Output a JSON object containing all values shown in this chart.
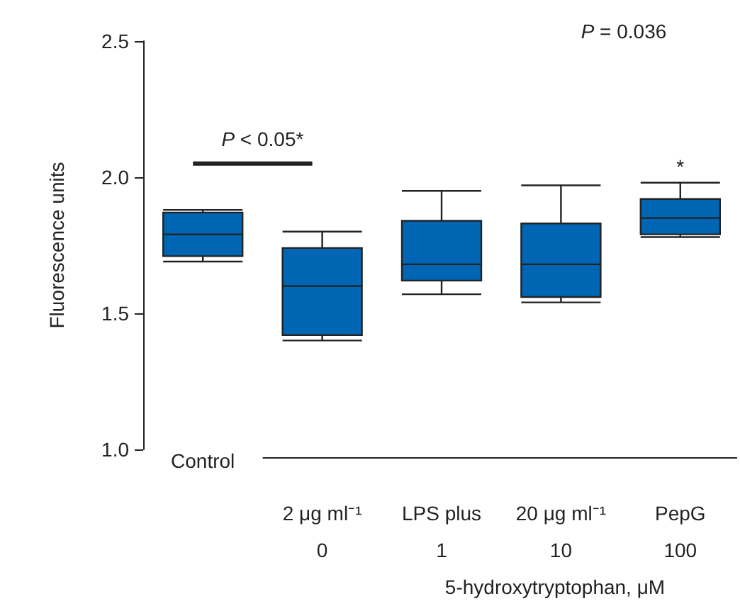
{
  "chart_data": {
    "type": "box",
    "ylabel": "Fluorescence units",
    "xlabel": "5-hydroxytryptophan, μM",
    "categories": [
      "Control",
      "0",
      "1",
      "10",
      "100"
    ],
    "color": "#0066b3",
    "ylim": [
      1.0,
      2.5
    ],
    "yticks": [
      {
        "value": 1.0,
        "label": "1.0"
      },
      {
        "value": 1.5,
        "label": "1.5"
      },
      {
        "value": 2.0,
        "label": "2.0"
      },
      {
        "value": 2.5,
        "label": "2.5"
      }
    ],
    "grid": false,
    "boxes": [
      {
        "low": 1.69,
        "q1": 1.71,
        "median": 1.79,
        "q3": 1.87,
        "high": 1.88
      },
      {
        "low": 1.4,
        "q1": 1.42,
        "median": 1.6,
        "q3": 1.74,
        "high": 1.8
      },
      {
        "low": 1.57,
        "q1": 1.62,
        "median": 1.68,
        "q3": 1.84,
        "high": 1.95
      },
      {
        "low": 1.54,
        "q1": 1.56,
        "median": 1.68,
        "q3": 1.83,
        "high": 1.97
      },
      {
        "low": 1.78,
        "q1": 1.79,
        "median": 1.85,
        "q3": 1.92,
        "high": 1.98
      }
    ],
    "annotations": [
      "P = 0.036",
      "P < 0.05*",
      "*",
      "2 μg ml⁻¹ LPS plus 20 μg ml⁻¹ PepG"
    ]
  }
}
